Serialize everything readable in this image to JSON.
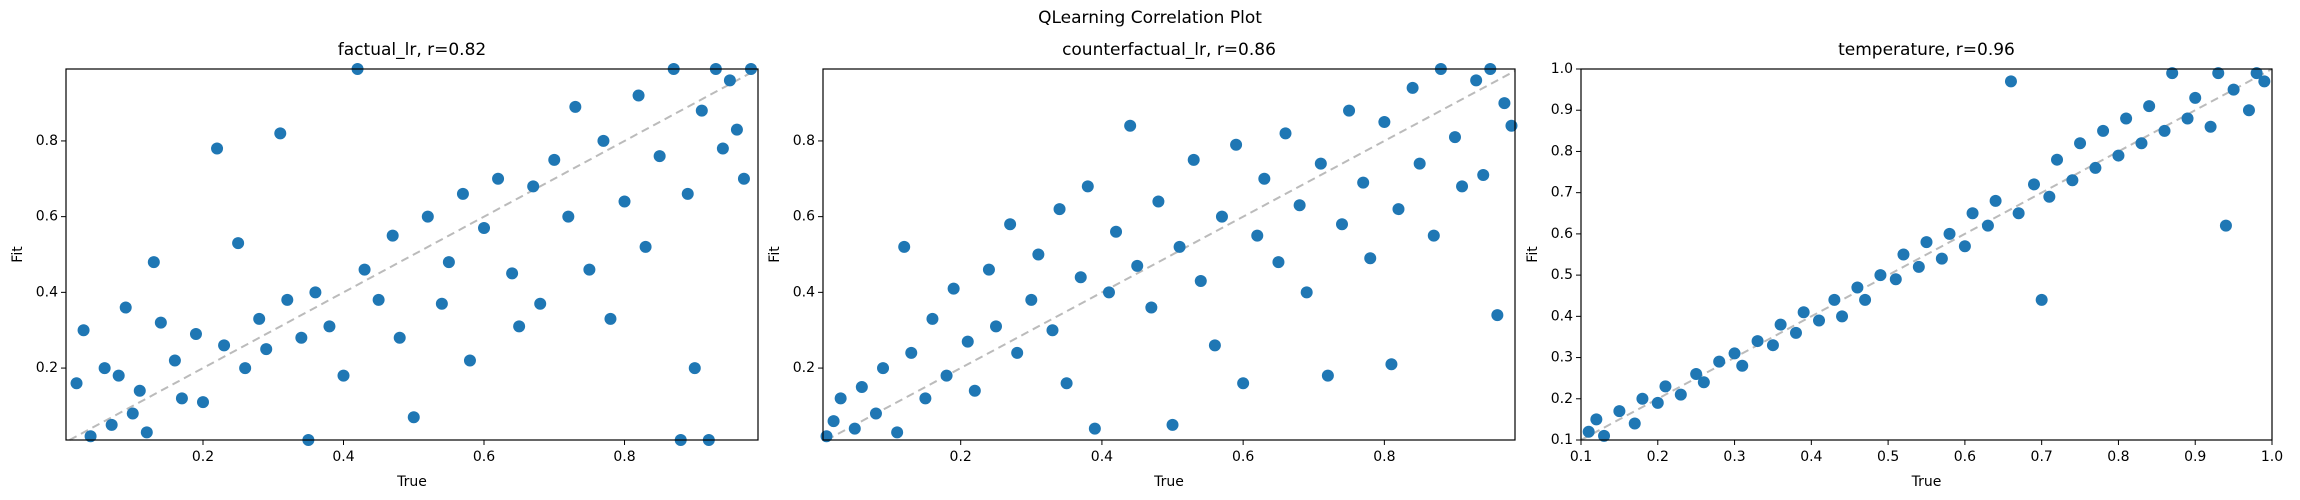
{
  "title": "QLearning Correlation Plot",
  "chart_data": [
    {
      "type": "scatter",
      "title": "factual_lr, r=0.82",
      "xlabel": "True",
      "ylabel": "Fit",
      "color": "#1f77b4",
      "xlim": [
        0.005,
        0.99
      ],
      "ylim": [
        0.01,
        0.99
      ],
      "xticks": [
        0.2,
        0.4,
        0.6,
        0.8
      ],
      "yticks": [
        0.2,
        0.4,
        0.6,
        0.8
      ],
      "x": [
        0.02,
        0.03,
        0.04,
        0.06,
        0.07,
        0.08,
        0.09,
        0.1,
        0.11,
        0.12,
        0.13,
        0.14,
        0.16,
        0.17,
        0.19,
        0.2,
        0.22,
        0.23,
        0.25,
        0.26,
        0.28,
        0.29,
        0.31,
        0.32,
        0.34,
        0.35,
        0.36,
        0.38,
        0.4,
        0.42,
        0.43,
        0.45,
        0.47,
        0.48,
        0.5,
        0.52,
        0.54,
        0.55,
        0.57,
        0.58,
        0.6,
        0.62,
        0.64,
        0.65,
        0.67,
        0.68,
        0.7,
        0.72,
        0.73,
        0.75,
        0.77,
        0.78,
        0.8,
        0.82,
        0.83,
        0.85,
        0.87,
        0.88,
        0.89,
        0.9,
        0.91,
        0.92,
        0.93,
        0.94,
        0.95,
        0.96,
        0.97,
        0.98
      ],
      "y": [
        0.16,
        0.3,
        0.02,
        0.2,
        0.05,
        0.18,
        0.36,
        0.08,
        0.14,
        0.03,
        0.48,
        0.32,
        0.22,
        0.12,
        0.29,
        0.11,
        0.78,
        0.26,
        0.53,
        0.2,
        0.33,
        0.25,
        0.82,
        0.38,
        0.28,
        0.01,
        0.4,
        0.31,
        0.18,
        0.99,
        0.46,
        0.38,
        0.55,
        0.28,
        0.07,
        0.6,
        0.37,
        0.48,
        0.66,
        0.22,
        0.57,
        0.7,
        0.45,
        0.31,
        0.68,
        0.37,
        0.75,
        0.6,
        0.89,
        0.46,
        0.8,
        0.33,
        0.64,
        0.92,
        0.52,
        0.76,
        0.99,
        0.01,
        0.66,
        0.2,
        0.88,
        0.01,
        0.99,
        0.78,
        0.96,
        0.83,
        0.7,
        0.99
      ]
    },
    {
      "type": "scatter",
      "title": "counterfactual_lr, r=0.86",
      "xlabel": "True",
      "ylabel": "Fit",
      "color": "#1f77b4",
      "xlim": [
        0.005,
        0.985
      ],
      "ylim": [
        0.01,
        0.99
      ],
      "xticks": [
        0.2,
        0.4,
        0.6,
        0.8
      ],
      "yticks": [
        0.2,
        0.4,
        0.6,
        0.8
      ],
      "x": [
        0.01,
        0.02,
        0.03,
        0.05,
        0.06,
        0.08,
        0.09,
        0.11,
        0.12,
        0.13,
        0.15,
        0.16,
        0.18,
        0.19,
        0.21,
        0.22,
        0.24,
        0.25,
        0.27,
        0.28,
        0.3,
        0.31,
        0.33,
        0.34,
        0.35,
        0.37,
        0.38,
        0.39,
        0.41,
        0.42,
        0.44,
        0.45,
        0.47,
        0.48,
        0.5,
        0.51,
        0.53,
        0.54,
        0.56,
        0.57,
        0.59,
        0.6,
        0.62,
        0.63,
        0.65,
        0.66,
        0.68,
        0.69,
        0.71,
        0.72,
        0.74,
        0.75,
        0.77,
        0.78,
        0.8,
        0.81,
        0.82,
        0.84,
        0.85,
        0.87,
        0.88,
        0.9,
        0.91,
        0.93,
        0.94,
        0.95,
        0.96,
        0.97,
        0.98
      ],
      "y": [
        0.02,
        0.06,
        0.12,
        0.04,
        0.15,
        0.08,
        0.2,
        0.03,
        0.52,
        0.24,
        0.12,
        0.33,
        0.18,
        0.41,
        0.27,
        0.14,
        0.46,
        0.31,
        0.58,
        0.24,
        0.38,
        0.5,
        0.3,
        0.62,
        0.16,
        0.44,
        0.68,
        0.04,
        0.4,
        0.56,
        0.84,
        0.47,
        0.36,
        0.64,
        0.05,
        0.52,
        0.75,
        0.43,
        0.26,
        0.6,
        0.79,
        0.16,
        0.55,
        0.7,
        0.48,
        0.82,
        0.63,
        0.4,
        0.74,
        0.18,
        0.58,
        0.88,
        0.69,
        0.49,
        0.85,
        0.21,
        0.62,
        0.94,
        0.74,
        0.55,
        0.99,
        0.81,
        0.68,
        0.96,
        0.71,
        0.99,
        0.34,
        0.9,
        0.84
      ]
    },
    {
      "type": "scatter",
      "title": "temperature, r=0.96",
      "xlabel": "True",
      "ylabel": "Fit",
      "color": "#1f77b4",
      "xlim": [
        0.1,
        1
      ],
      "ylim": [
        0.1,
        1
      ],
      "xticks": [
        0.1,
        0.2,
        0.3,
        0.4,
        0.5,
        0.6,
        0.7,
        0.8,
        0.9,
        {
          "value": 1,
          "label": "1.0"
        }
      ],
      "yticks": [
        0.1,
        0.2,
        0.3,
        0.4,
        0.5,
        0.6,
        0.7,
        0.8,
        0.9,
        {
          "value": 1,
          "label": "1.0"
        }
      ],
      "x": [
        0.11,
        0.12,
        0.13,
        0.15,
        0.17,
        0.18,
        0.2,
        0.21,
        0.23,
        0.25,
        0.26,
        0.28,
        0.3,
        0.31,
        0.33,
        0.35,
        0.36,
        0.38,
        0.39,
        0.41,
        0.43,
        0.44,
        0.46,
        0.47,
        0.49,
        0.51,
        0.52,
        0.54,
        0.55,
        0.57,
        0.58,
        0.6,
        0.61,
        0.63,
        0.64,
        0.66,
        0.67,
        0.69,
        0.7,
        0.71,
        0.72,
        0.74,
        0.75,
        0.77,
        0.78,
        0.8,
        0.81,
        0.83,
        0.84,
        0.86,
        0.87,
        0.89,
        0.9,
        0.92,
        0.93,
        0.94,
        0.95,
        0.97,
        0.98,
        0.99
      ],
      "y": [
        0.12,
        0.15,
        0.11,
        0.17,
        0.14,
        0.2,
        0.19,
        0.23,
        0.21,
        0.26,
        0.24,
        0.29,
        0.31,
        0.28,
        0.34,
        0.33,
        0.38,
        0.36,
        0.41,
        0.39,
        0.44,
        0.4,
        0.47,
        0.44,
        0.5,
        0.49,
        0.55,
        0.52,
        0.58,
        0.54,
        0.6,
        0.57,
        0.65,
        0.62,
        0.68,
        0.97,
        0.65,
        0.72,
        0.44,
        0.69,
        0.78,
        0.73,
        0.82,
        0.76,
        0.85,
        0.79,
        0.88,
        0.82,
        0.91,
        0.85,
        0.99,
        0.88,
        0.93,
        0.86,
        0.99,
        0.62,
        0.95,
        0.9,
        0.99,
        0.97
      ]
    }
  ]
}
